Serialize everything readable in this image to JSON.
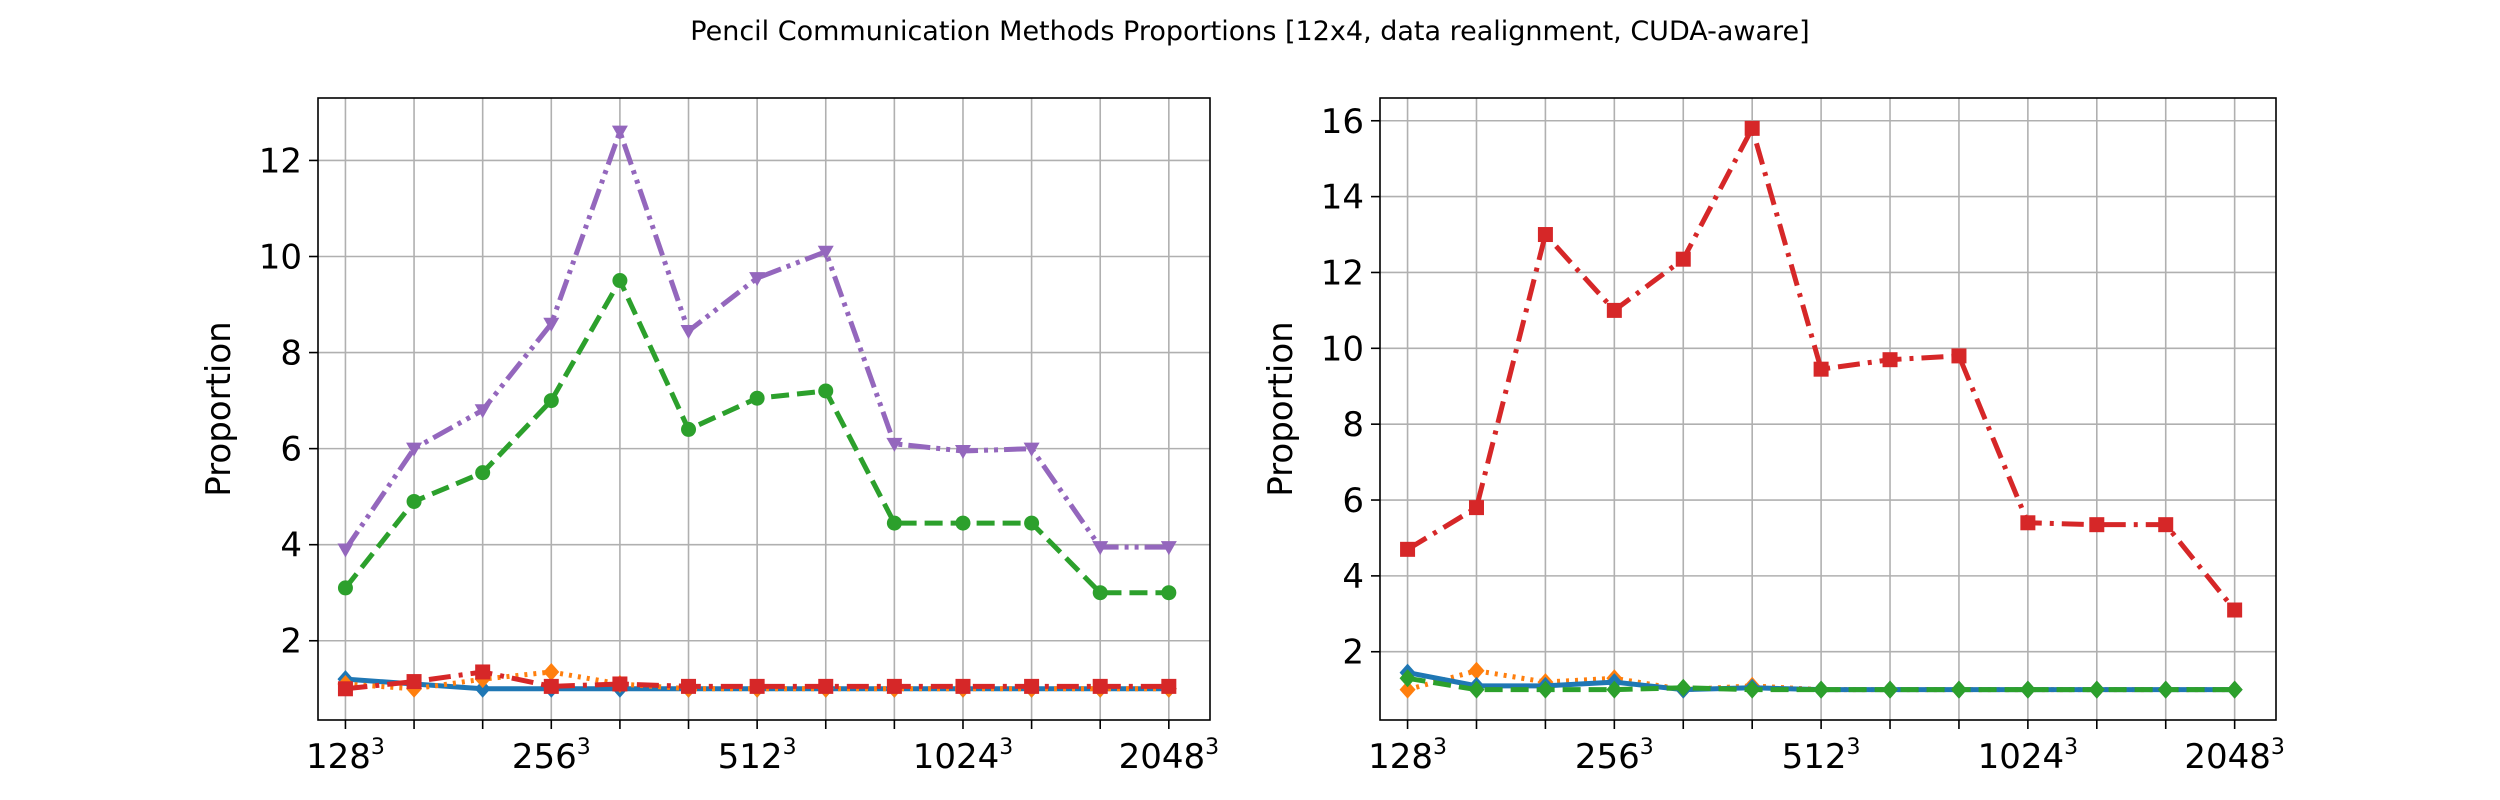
{
  "figure_title": "Pencil Communication Methods Proportions [12x4, data realignment, CUDA-aware]",
  "chart_data": [
    {
      "type": "line",
      "ylabel": "Proportion",
      "xlabel": "",
      "xlim": [
        0.6,
        13.6
      ],
      "ylim": [
        0.35,
        13.3
      ],
      "yticks": [
        2,
        4,
        6,
        8,
        10,
        12
      ],
      "grid": true,
      "x": [
        1,
        2,
        3,
        4,
        5,
        6,
        7,
        8,
        9,
        10,
        11,
        12,
        13
      ],
      "xtick_labels": [
        {
          "x": 1,
          "base": "128",
          "exp": "3"
        },
        {
          "x": 4,
          "base": "256",
          "exp": "3"
        },
        {
          "x": 7,
          "base": "512",
          "exp": "3"
        },
        {
          "x": 10,
          "base": "1024",
          "exp": "3"
        },
        {
          "x": 13,
          "base": "2048",
          "exp": "3"
        }
      ],
      "series": [
        {
          "color": "#1f77b4",
          "dash": "solid",
          "marker": "diamond",
          "values": [
            1.2,
            1.1,
            1.0,
            1.0,
            1.0,
            1.0,
            1.0,
            1.0,
            1.0,
            1.0,
            1.0,
            1.0,
            1.0
          ]
        },
        {
          "color": "#ff7f0e",
          "dash": "dotted",
          "marker": "diamond",
          "values": [
            1.1,
            1.0,
            1.2,
            1.35,
            1.1,
            1.0,
            1.0,
            1.0,
            1.0,
            1.0,
            1.0,
            1.0,
            1.0
          ]
        },
        {
          "color": "#2ca02c",
          "dash": "dashed",
          "marker": "circle",
          "values": [
            3.1,
            4.9,
            5.5,
            7.0,
            9.5,
            6.4,
            7.05,
            7.2,
            4.45,
            4.45,
            4.45,
            3.0,
            3.0
          ]
        },
        {
          "color": "#d62728",
          "dash": "dashdot",
          "marker": "square",
          "values": [
            1.0,
            1.15,
            1.35,
            1.05,
            1.1,
            1.05,
            1.05,
            1.05,
            1.05,
            1.05,
            1.05,
            1.05,
            1.05
          ]
        },
        {
          "color": "#9467bd",
          "dash": "dashdotdot",
          "marker": "triangle",
          "values": [
            3.9,
            6.0,
            6.8,
            8.6,
            12.6,
            8.45,
            9.55,
            10.1,
            6.1,
            5.95,
            6.0,
            3.95,
            3.95
          ]
        }
      ]
    },
    {
      "type": "line",
      "ylabel": "Proportion",
      "xlabel": "",
      "xlim": [
        0.6,
        13.6
      ],
      "ylim": [
        0.2,
        16.6
      ],
      "yticks": [
        2,
        4,
        6,
        8,
        10,
        12,
        14,
        16
      ],
      "grid": true,
      "x": [
        1,
        2,
        3,
        4,
        5,
        6,
        7,
        8,
        9,
        10,
        11,
        12,
        13
      ],
      "xtick_labels": [
        {
          "x": 1,
          "base": "128",
          "exp": "3"
        },
        {
          "x": 4,
          "base": "256",
          "exp": "3"
        },
        {
          "x": 7,
          "base": "512",
          "exp": "3"
        },
        {
          "x": 10,
          "base": "1024",
          "exp": "3"
        },
        {
          "x": 13,
          "base": "2048",
          "exp": "3"
        }
      ],
      "series": [
        {
          "color": "#d62728",
          "dash": "dashdot",
          "marker": "square",
          "values": [
            4.7,
            5.8,
            13.0,
            11.0,
            12.35,
            15.8,
            9.45,
            9.7,
            9.8,
            5.4,
            5.35,
            5.35,
            3.1
          ]
        },
        {
          "color": "#ff7f0e",
          "dash": "dotted",
          "marker": "diamond",
          "values": [
            1.0,
            1.5,
            1.2,
            1.3,
            1.0,
            1.1,
            1.0,
            1.0,
            1.0,
            1.0,
            1.0,
            1.0,
            1.0
          ]
        },
        {
          "color": "#1f77b4",
          "dash": "solid",
          "marker": "diamond",
          "values": [
            1.45,
            1.1,
            1.1,
            1.2,
            1.0,
            1.05,
            1.0,
            1.0,
            1.0,
            1.0,
            1.0,
            1.0,
            1.0
          ]
        },
        {
          "color": "#2ca02c",
          "dash": "dashed",
          "marker": "diamond",
          "values": [
            1.3,
            1.0,
            1.0,
            1.0,
            1.05,
            1.0,
            1.0,
            1.0,
            1.0,
            1.0,
            1.0,
            1.0,
            1.0
          ]
        }
      ]
    }
  ]
}
